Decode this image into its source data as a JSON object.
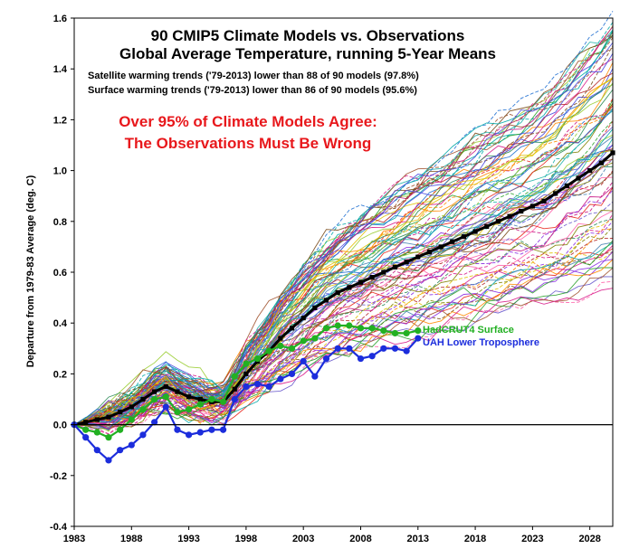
{
  "chart_data": {
    "type": "line",
    "title": "90 CMIP5 Climate Models vs. Observations",
    "subtitle": "Global Average Temperature, running 5-Year Means",
    "notes": [
      "Satellite warming trends ('79-2013) lower than 88 of 90 models (97.8%)",
      "Surface warming trends ('79-2013) lower than 86 of 90 models (95.6%)"
    ],
    "callout": [
      "Over 95% of Climate Models Agree:",
      "The Observations Must Be Wrong"
    ],
    "xlabel": "",
    "ylabel": "Departure from 1979-83 Average (deg. C)",
    "xlim": [
      1983,
      2030
    ],
    "ylim": [
      -0.4,
      1.6
    ],
    "x_ticks": [
      "1983",
      "1988",
      "1993",
      "1998",
      "2003",
      "2008",
      "2013",
      "2018",
      "2023",
      "2028"
    ],
    "y_ticks": [
      "1.6",
      "1.4",
      "1.2",
      "1.0",
      "0.8",
      "0.6",
      "0.4",
      "0.2",
      "0.0",
      "-0.2",
      "-0.4"
    ],
    "model_count": 90,
    "model_colors": [
      "#1f6fd1",
      "#e8261c",
      "#2aa12a",
      "#ff8a00",
      "#8a2be2",
      "#00a8a8",
      "#d81b8a",
      "#7a4a1a",
      "#4a4ae0",
      "#e0c000",
      "#ff5fa8",
      "#2e8b57",
      "#b22222",
      "#4682b4",
      "#9acd32",
      "#a0522d",
      "#6a5acd",
      "#20b2aa",
      "#c71585",
      "#808000"
    ],
    "series": [
      {
        "name": "Model Mean",
        "color": "#000000",
        "x": [
          1983,
          1984,
          1985,
          1986,
          1987,
          1988,
          1989,
          1990,
          1991,
          1992,
          1993,
          1994,
          1995,
          1996,
          1997,
          1998,
          1999,
          2000,
          2001,
          2002,
          2003,
          2004,
          2005,
          2006,
          2007,
          2008,
          2009,
          2010,
          2011,
          2012,
          2013,
          2014,
          2015,
          2016,
          2017,
          2018,
          2019,
          2020,
          2021,
          2022,
          2023,
          2024,
          2025,
          2026,
          2027,
          2028,
          2029,
          2030
        ],
        "values": [
          0.0,
          0.01,
          0.02,
          0.03,
          0.05,
          0.07,
          0.1,
          0.13,
          0.15,
          0.13,
          0.11,
          0.1,
          0.09,
          0.09,
          0.14,
          0.2,
          0.25,
          0.29,
          0.34,
          0.38,
          0.42,
          0.46,
          0.49,
          0.52,
          0.54,
          0.56,
          0.58,
          0.6,
          0.62,
          0.64,
          0.66,
          0.68,
          0.7,
          0.72,
          0.74,
          0.76,
          0.78,
          0.8,
          0.82,
          0.84,
          0.86,
          0.88,
          0.91,
          0.94,
          0.97,
          1.0,
          1.03,
          1.07
        ]
      },
      {
        "name": "HadCRUT4 Surface",
        "color": "#22b022",
        "x": [
          1983,
          1984,
          1985,
          1986,
          1987,
          1988,
          1989,
          1990,
          1991,
          1992,
          1993,
          1994,
          1995,
          1996,
          1997,
          1998,
          1999,
          2000,
          2001,
          2002,
          2003,
          2004,
          2005,
          2006,
          2007,
          2008,
          2009,
          2010,
          2011,
          2012,
          2013
        ],
        "values": [
          0.0,
          -0.02,
          -0.03,
          -0.05,
          -0.02,
          0.02,
          0.06,
          0.1,
          0.11,
          0.05,
          0.06,
          0.08,
          0.1,
          0.09,
          0.19,
          0.24,
          0.26,
          0.29,
          0.31,
          0.3,
          0.33,
          0.34,
          0.38,
          0.39,
          0.39,
          0.38,
          0.38,
          0.37,
          0.36,
          0.36,
          0.37
        ]
      },
      {
        "name": "UAH Lower Troposphere",
        "color": "#1c2ddc",
        "x": [
          1983,
          1984,
          1985,
          1986,
          1987,
          1988,
          1989,
          1990,
          1991,
          1992,
          1993,
          1994,
          1995,
          1996,
          1997,
          1998,
          1999,
          2000,
          2001,
          2002,
          2003,
          2004,
          2005,
          2006,
          2007,
          2008,
          2009,
          2010,
          2011,
          2012,
          2013
        ],
        "values": [
          0.0,
          -0.05,
          -0.1,
          -0.14,
          -0.1,
          -0.08,
          -0.04,
          0.01,
          0.07,
          -0.02,
          -0.04,
          -0.03,
          -0.02,
          -0.02,
          0.1,
          0.15,
          0.16,
          0.15,
          0.18,
          0.2,
          0.25,
          0.19,
          0.26,
          0.3,
          0.3,
          0.26,
          0.27,
          0.3,
          0.3,
          0.29,
          0.34
        ]
      }
    ]
  }
}
